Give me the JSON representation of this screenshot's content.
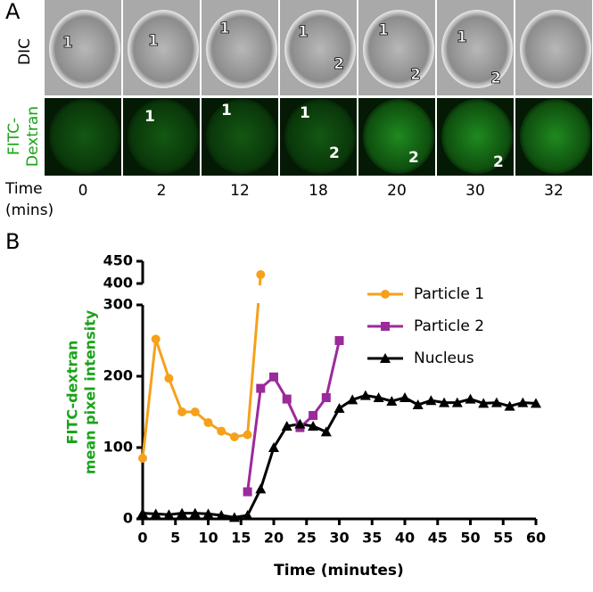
{
  "panel_a": {
    "label": "A",
    "dic_label": "DIC",
    "fitc_label": [
      "FITC-",
      "Dextran"
    ],
    "time_label": [
      "Time",
      "(mins)"
    ],
    "times": [
      0,
      2,
      12,
      18,
      20,
      30,
      32
    ],
    "dic_particles": [
      [
        "1"
      ],
      [
        "1"
      ],
      [
        "1"
      ],
      [
        "1",
        "2"
      ],
      [
        "1",
        "2"
      ],
      [
        "1",
        "2"
      ],
      []
    ],
    "fitc_particles": [
      [],
      [
        "1"
      ],
      [
        "1"
      ],
      [
        "1",
        "2"
      ],
      [
        "2"
      ],
      [
        "2"
      ],
      []
    ]
  },
  "chart_data": {
    "type": "line",
    "panel_label": "B",
    "y_label": [
      "FITC-dextran",
      "mean pixel intensity"
    ],
    "x_label": "Time (minutes)",
    "xlim": [
      0,
      60
    ],
    "xticks": [
      0,
      5,
      10,
      15,
      20,
      25,
      30,
      35,
      40,
      45,
      50,
      55,
      60
    ],
    "ylim": [
      0,
      450
    ],
    "y_break": [
      300,
      400
    ],
    "yticks": [
      0,
      100,
      200,
      300,
      400,
      450
    ],
    "series": [
      {
        "name": "Particle 1",
        "color": "#f5a11c",
        "marker": "circle",
        "x": [
          0,
          2,
          4,
          6,
          8,
          10,
          12,
          14,
          16,
          18
        ],
        "values": [
          85,
          252,
          197,
          150,
          150,
          135,
          123,
          115,
          118,
          420
        ]
      },
      {
        "name": "Particle 2",
        "color": "#9b2a9b",
        "marker": "square",
        "x": [
          16,
          18,
          20,
          22,
          24,
          26,
          28,
          30
        ],
        "values": [
          38,
          183,
          199,
          168,
          128,
          145,
          170,
          250
        ]
      },
      {
        "name": "Nucleus",
        "color": "#000000",
        "marker": "triangle",
        "x": [
          0,
          2,
          4,
          6,
          8,
          10,
          12,
          14,
          16,
          18,
          20,
          22,
          24,
          26,
          28,
          30,
          32,
          34,
          36,
          38,
          40,
          42,
          44,
          46,
          48,
          50,
          52,
          54,
          56,
          58,
          60
        ],
        "values": [
          8,
          7,
          6,
          8,
          8,
          7,
          5,
          2,
          5,
          42,
          100,
          130,
          133,
          130,
          122,
          155,
          167,
          173,
          170,
          165,
          170,
          160,
          166,
          163,
          163,
          168,
          162,
          163,
          158,
          163,
          162
        ]
      }
    ]
  }
}
